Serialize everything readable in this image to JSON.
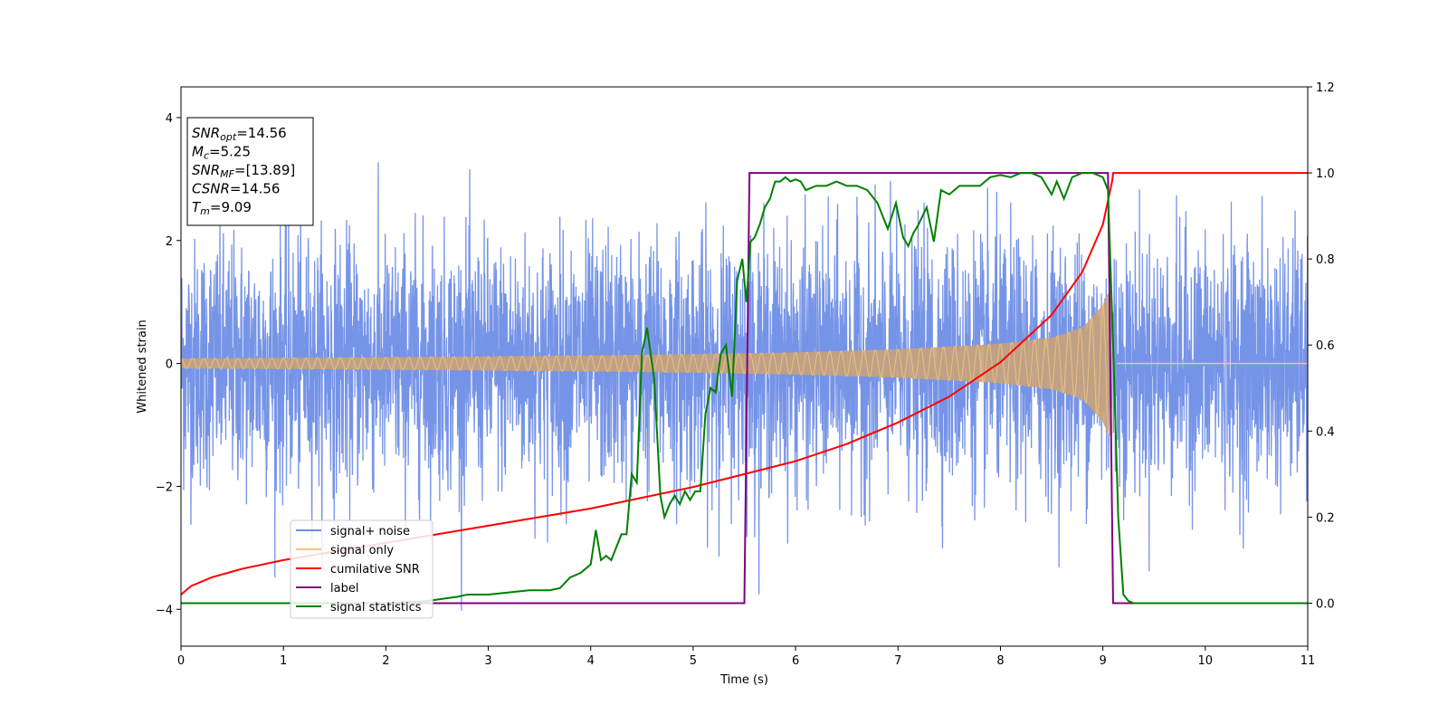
{
  "chart_data": {
    "type": "line",
    "title": "",
    "xlabel": "Time (s)",
    "ylabel": "Whitened strain",
    "y2label": "",
    "xlim": [
      0,
      11
    ],
    "ylim": [
      -4.6,
      4.5
    ],
    "y2lim": [
      -0.1,
      1.2
    ],
    "xticks": [
      "0",
      "1",
      "2",
      "3",
      "4",
      "5",
      "6",
      "7",
      "8",
      "9",
      "10",
      "11"
    ],
    "yticks": [
      "4",
      "2",
      "0",
      "−2",
      "−4"
    ],
    "y2ticks": [
      "0.0",
      "0.2",
      "0.4",
      "0.6",
      "0.8",
      "1.0",
      "1.2"
    ],
    "grid": false,
    "legend_position": "lower-left",
    "annotation": {
      "lines": [
        {
          "base": "SNR",
          "sub": "opt",
          "value": "=14.56"
        },
        {
          "base": "M",
          "sub": "c",
          "value": "=5.25"
        },
        {
          "base": "SNR",
          "sub": "MF",
          "value": "=[13.89]"
        },
        {
          "base": "CSNR",
          "sub": "",
          "value": "=14.56"
        },
        {
          "base": "T",
          "sub": "m",
          "value": "=9.09"
        }
      ]
    },
    "series": [
      {
        "name": "signal+ noise",
        "color": "#6f8ee6",
        "axis": "left",
        "description_values": {
          "approx_std": 1.0,
          "approx_range": [
            -4.1,
            4.1
          ]
        }
      },
      {
        "name": "signal only",
        "color": "#f5c77e",
        "axis": "left",
        "envelope": {
          "t": [
            0,
            2,
            4,
            5,
            6,
            7,
            8,
            8.5,
            8.8,
            9.0,
            9.05,
            9.09
          ],
          "amp": [
            0.08,
            0.1,
            0.13,
            0.15,
            0.18,
            0.23,
            0.32,
            0.42,
            0.58,
            0.95,
            1.15,
            1.2
          ]
        },
        "merger_time": 9.09
      },
      {
        "name": "cumilative SNR",
        "color": "#ff0000",
        "axis": "right",
        "x": [
          0,
          0.1,
          0.3,
          0.6,
          1,
          1.5,
          2,
          2.5,
          3,
          3.5,
          4,
          4.5,
          5,
          5.5,
          6,
          6.5,
          7,
          7.5,
          8,
          8.5,
          8.8,
          9,
          9.09,
          9.1,
          11
        ],
        "values": [
          0.02,
          0.04,
          0.06,
          0.08,
          0.1,
          0.12,
          0.14,
          0.16,
          0.18,
          0.2,
          0.22,
          0.245,
          0.27,
          0.3,
          0.33,
          0.37,
          0.42,
          0.48,
          0.56,
          0.67,
          0.77,
          0.88,
          0.98,
          1.0,
          1.0
        ]
      },
      {
        "name": "label",
        "color": "#800080",
        "axis": "right",
        "x": [
          0,
          5.5,
          5.55,
          9.05,
          9.1,
          11
        ],
        "values": [
          0,
          0,
          1,
          1,
          0,
          0
        ]
      },
      {
        "name": "signal statistics",
        "color": "#008000",
        "axis": "right",
        "x": [
          0,
          1,
          2,
          2.4,
          2.7,
          2.8,
          3.0,
          3.2,
          3.4,
          3.6,
          3.7,
          3.8,
          3.9,
          3.95,
          4.0,
          4.05,
          4.1,
          4.15,
          4.2,
          4.25,
          4.3,
          4.35,
          4.4,
          4.45,
          4.5,
          4.55,
          4.62,
          4.68,
          4.72,
          4.77,
          4.82,
          4.87,
          4.92,
          4.97,
          5.02,
          5.07,
          5.12,
          5.17,
          5.22,
          5.27,
          5.32,
          5.38,
          5.43,
          5.48,
          5.52,
          5.56,
          5.6,
          5.65,
          5.7,
          5.75,
          5.8,
          5.85,
          5.9,
          5.95,
          6.0,
          6.05,
          6.1,
          6.2,
          6.3,
          6.4,
          6.5,
          6.6,
          6.7,
          6.8,
          6.9,
          6.98,
          7.05,
          7.1,
          7.15,
          7.2,
          7.28,
          7.35,
          7.42,
          7.5,
          7.6,
          7.7,
          7.8,
          7.9,
          8.0,
          8.1,
          8.2,
          8.3,
          8.4,
          8.5,
          8.55,
          8.62,
          8.7,
          8.8,
          8.9,
          9.0,
          9.05,
          9.1,
          9.15,
          9.2,
          9.25,
          9.3,
          9.4,
          11
        ],
        "values": [
          0.0,
          0.0,
          0.0,
          0.005,
          0.015,
          0.02,
          0.02,
          0.025,
          0.03,
          0.03,
          0.035,
          0.06,
          0.07,
          0.08,
          0.09,
          0.17,
          0.1,
          0.11,
          0.1,
          0.13,
          0.16,
          0.16,
          0.3,
          0.28,
          0.58,
          0.64,
          0.52,
          0.25,
          0.2,
          0.23,
          0.25,
          0.23,
          0.26,
          0.24,
          0.26,
          0.26,
          0.44,
          0.5,
          0.49,
          0.58,
          0.6,
          0.48,
          0.75,
          0.8,
          0.7,
          0.84,
          0.85,
          0.88,
          0.92,
          0.94,
          0.98,
          0.98,
          0.99,
          0.98,
          0.985,
          0.98,
          0.96,
          0.97,
          0.97,
          0.98,
          0.97,
          0.97,
          0.96,
          0.93,
          0.87,
          0.93,
          0.85,
          0.83,
          0.86,
          0.88,
          0.92,
          0.84,
          0.96,
          0.95,
          0.97,
          0.97,
          0.97,
          0.99,
          0.995,
          0.99,
          1.0,
          1.0,
          0.99,
          0.95,
          0.98,
          0.94,
          0.99,
          1.0,
          1.0,
          0.99,
          0.96,
          0.6,
          0.2,
          0.02,
          0.005,
          0.0,
          0.0,
          0.0
        ]
      }
    ]
  }
}
